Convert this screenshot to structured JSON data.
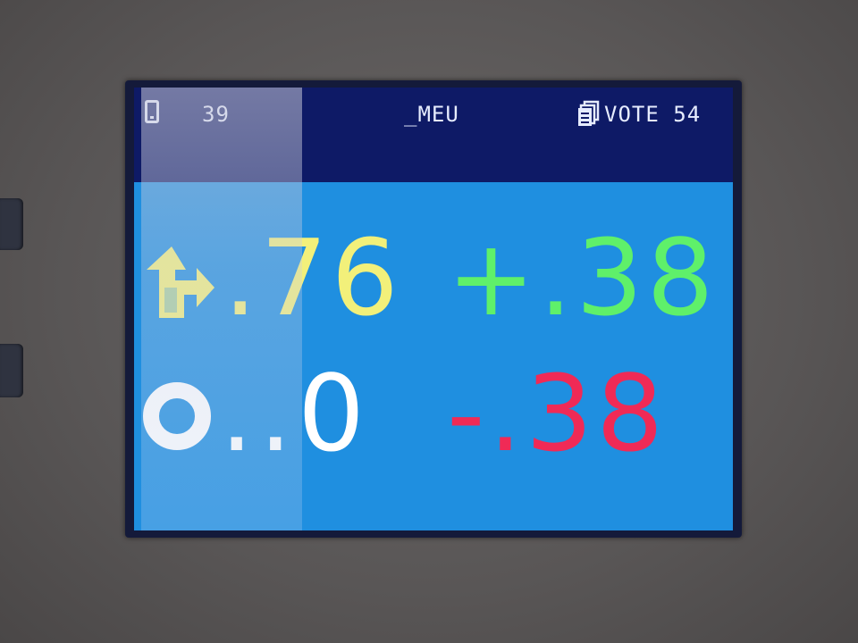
{
  "status_bar": {
    "left_value": "39",
    "center_label": "_MEU",
    "right_label": "VOTE 54"
  },
  "rows": [
    {
      "icon": "move-arrow-icon",
      "value": ".76",
      "delta": "+.38",
      "value_color": "#f2f07a",
      "delta_color": "#5ff06a"
    },
    {
      "icon": "ring-icon",
      "value": "..0",
      "delta": "-.38",
      "value_color": "#ffffff",
      "delta_color": "#f02a56"
    }
  ],
  "colors": {
    "screen_background": "#1f8fe0",
    "status_bar_background": "#0e1a66"
  }
}
